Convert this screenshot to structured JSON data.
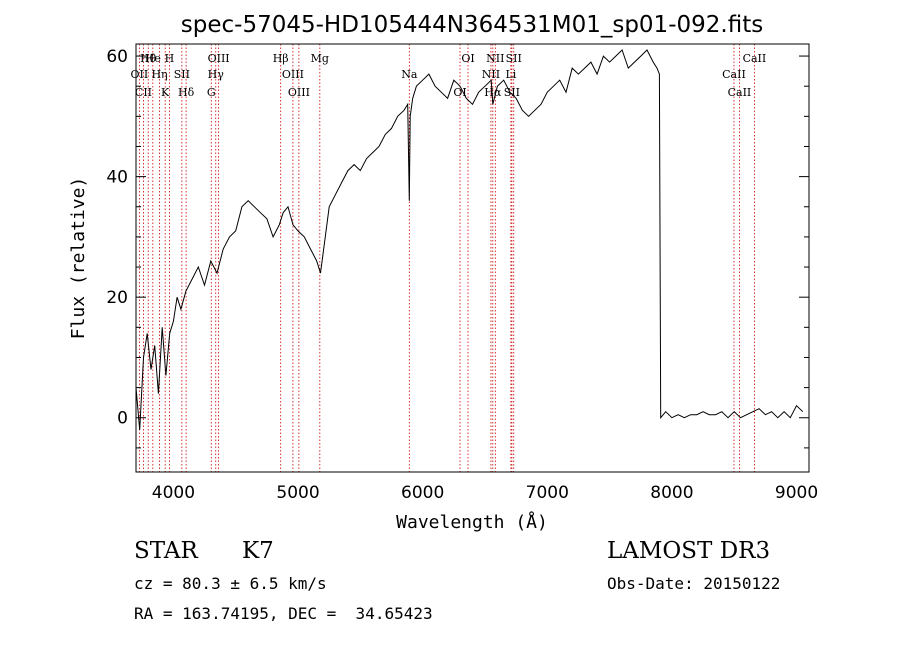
{
  "chart_data": {
    "type": "line",
    "title": "spec-57045-HD105444N364531M01_sp01-092.fits",
    "xlabel": "Wavelength (Å)",
    "ylabel": "Flux (relative)",
    "xlim": [
      3700,
      9100
    ],
    "ylim": [
      -9,
      62
    ],
    "xticks": [
      4000,
      5000,
      6000,
      7000,
      8000,
      9000
    ],
    "yticks": [
      0,
      20,
      40,
      60
    ],
    "grid": false,
    "series": [
      {
        "color": "#000000",
        "x": [
          3700,
          3730,
          3760,
          3790,
          3820,
          3850,
          3880,
          3910,
          3940,
          3970,
          4000,
          4030,
          4060,
          4100,
          4150,
          4200,
          4250,
          4300,
          4350,
          4400,
          4450,
          4500,
          4550,
          4600,
          4650,
          4700,
          4750,
          4800,
          4850,
          4880,
          4920,
          4960,
          5000,
          5050,
          5100,
          5150,
          5180,
          5200,
          5250,
          5300,
          5350,
          5400,
          5450,
          5500,
          5550,
          5600,
          5650,
          5700,
          5750,
          5800,
          5850,
          5880,
          5893,
          5900,
          5920,
          5950,
          6000,
          6050,
          6100,
          6150,
          6200,
          6250,
          6300,
          6350,
          6400,
          6450,
          6500,
          6550,
          6563,
          6600,
          6650,
          6700,
          6750,
          6800,
          6850,
          6900,
          6950,
          7000,
          7050,
          7100,
          7150,
          7200,
          7250,
          7300,
          7350,
          7400,
          7450,
          7500,
          7550,
          7600,
          7650,
          7700,
          7750,
          7800,
          7850,
          7880,
          7900,
          7910,
          7950,
          8000,
          8050,
          8100,
          8150,
          8200,
          8250,
          8300,
          8350,
          8400,
          8450,
          8500,
          8550,
          8600,
          8650,
          8700,
          8750,
          8800,
          8850,
          8900,
          8950,
          9000,
          9050
        ],
        "y": [
          5,
          -2,
          10,
          14,
          8,
          12,
          4,
          15,
          7,
          14,
          16,
          20,
          18,
          21,
          23,
          25,
          22,
          26,
          24,
          28,
          30,
          31,
          35,
          36,
          35,
          34,
          33,
          30,
          32,
          34,
          35,
          32,
          31,
          30,
          28,
          26,
          24,
          27,
          35,
          37,
          39,
          41,
          42,
          41,
          43,
          44,
          45,
          47,
          48,
          50,
          51,
          52,
          36,
          50,
          53,
          55,
          56,
          57,
          55,
          54,
          53,
          56,
          55,
          53,
          52,
          54,
          55,
          56,
          52,
          55,
          56,
          54,
          53,
          51,
          50,
          51,
          52,
          54,
          55,
          56,
          54,
          58,
          57,
          58,
          59,
          57,
          60,
          59,
          60,
          61,
          58,
          59,
          60,
          61,
          59,
          58,
          57,
          0,
          1,
          0,
          0.5,
          0,
          0.5,
          0.5,
          1,
          0.5,
          0.5,
          1,
          0,
          1,
          0,
          0.5,
          1,
          1.5,
          0.5,
          1,
          0,
          1,
          0,
          2,
          1
        ]
      }
    ],
    "lines": [
      {
        "label": "Hθ",
        "x": 3798
      },
      {
        "label": "OII",
        "x": 3727
      },
      {
        "label": "CII",
        "x": 3760
      },
      {
        "label": "He",
        "x": 3835
      },
      {
        "label": "Hη",
        "x": 3889
      },
      {
        "label": "K",
        "x": 3934
      },
      {
        "label": "H",
        "x": 3968
      },
      {
        "label": "SII",
        "x": 4068
      },
      {
        "label": "Hδ",
        "x": 4102
      },
      {
        "label": "OIII",
        "x": 4363
      },
      {
        "label": "Hγ",
        "x": 4340
      },
      {
        "label": "G",
        "x": 4304
      },
      {
        "label": "Hβ",
        "x": 4861
      },
      {
        "label": "OIII",
        "x": 4959
      },
      {
        "label": "OIII",
        "x": 5007
      },
      {
        "label": "Mg",
        "x": 5175
      },
      {
        "label": "Na",
        "x": 5893
      },
      {
        "label": "OI",
        "x": 6300
      },
      {
        "label": "OI",
        "x": 6364
      },
      {
        "label": "NII",
        "x": 6548
      },
      {
        "label": "Hα",
        "x": 6563
      },
      {
        "label": "NII",
        "x": 6583
      },
      {
        "label": "Li",
        "x": 6708
      },
      {
        "label": "SII",
        "x": 6716
      },
      {
        "label": "SII",
        "x": 6731
      },
      {
        "label": "CaII",
        "x": 8498
      },
      {
        "label": "CaII",
        "x": 8542
      },
      {
        "label": "CaII",
        "x": 8662
      }
    ]
  },
  "info": {
    "class": "STAR",
    "subclass": "K7",
    "survey": "LAMOST DR3",
    "cz": "cz = 80.3 ± 6.5 km/s",
    "obs_date": "Obs-Date: 20150122",
    "radec": "RA = 163.74195, DEC =  34.65423"
  }
}
